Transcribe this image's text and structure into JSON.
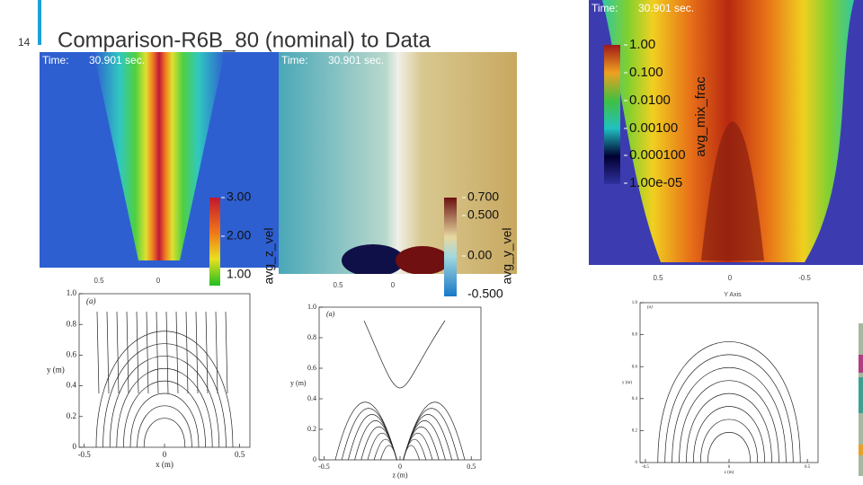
{
  "slide_number": "14",
  "title": "Comparison-R6B_80 (nominal) to Data",
  "simulations": [
    {
      "time_label": "Time:",
      "time": "30.901 sec.",
      "colorbar": {
        "title": "avg_z_vel",
        "ticks": [
          "3.00",
          "2.00",
          "1.00"
        ]
      },
      "axis_ticks": [
        "0.5",
        "0"
      ]
    },
    {
      "time_label": "Time:",
      "time": "30.901 sec.",
      "colorbar": {
        "title": "avg_y_vel",
        "ticks": [
          "0.700",
          "0.500",
          "0.00",
          "-0.500"
        ]
      },
      "axis_ticks": [
        "0.5",
        "0"
      ]
    },
    {
      "time_label": "Time:",
      "time": "30.901 sec.",
      "colorbar": {
        "title": "avg_mix_frac",
        "ticks": [
          "1.00",
          "0.100",
          "0.0100",
          "0.00100",
          "0.000100",
          "1.00e-05"
        ]
      },
      "axis_ticks": [
        "0.5",
        "0",
        "-0.5"
      ],
      "axis_title": "Y Axis"
    }
  ],
  "measurements": [
    {
      "panel_label": "(a)",
      "y_label": "y (m)",
      "x_label": "x (m)",
      "y_ticks": [
        "1.0",
        "0.8",
        "0.6",
        "0.4",
        "0.2",
        "0"
      ],
      "x_ticks": [
        "-0.5",
        "0",
        "0.5"
      ]
    },
    {
      "panel_label": "(a)",
      "y_label": "y (m)",
      "x_label": "z (m)",
      "y_ticks": [
        "1.0",
        "0.8",
        "0.6",
        "0.4",
        "0.2",
        "0"
      ],
      "x_ticks": [
        "-0.5",
        "0",
        "0.5"
      ]
    },
    {
      "panel_label": "(a)",
      "y_label": "y (m)",
      "x_label": "z (m)",
      "y_ticks": [
        "1.0",
        "0.8",
        "0.6",
        "0.4",
        "0.2",
        "0"
      ],
      "x_ticks": [
        "-0.5",
        "0",
        "0.5"
      ]
    }
  ]
}
